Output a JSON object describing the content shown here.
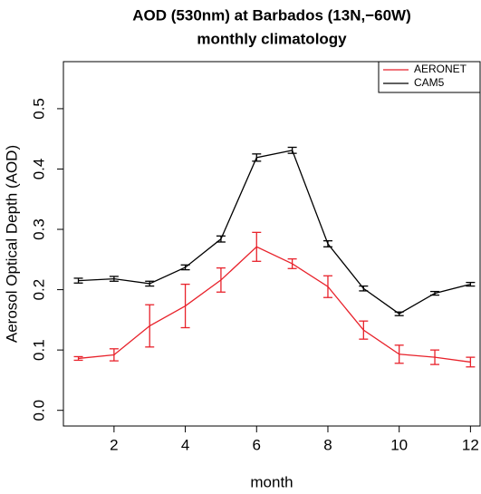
{
  "chart_data": {
    "type": "line",
    "title": "AOD (530nm) at Barbados (13N,−60W)",
    "subtitle": "monthly climatology",
    "x_label": "month",
    "y_label": "Aerosol Optical Depth (AOD)",
    "x": [
      1,
      2,
      3,
      4,
      5,
      6,
      7,
      8,
      9,
      10,
      11,
      12
    ],
    "series": [
      {
        "name": "AERONET",
        "color": "#e8222b",
        "values": [
          0.086,
          0.092,
          0.14,
          0.173,
          0.216,
          0.271,
          0.243,
          0.205,
          0.133,
          0.093,
          0.088,
          0.08
        ],
        "errors": [
          0.003,
          0.01,
          0.035,
          0.036,
          0.02,
          0.024,
          0.008,
          0.018,
          0.015,
          0.015,
          0.012,
          0.008
        ]
      },
      {
        "name": "CAM5",
        "color": "#000000",
        "values": [
          0.215,
          0.218,
          0.21,
          0.237,
          0.284,
          0.419,
          0.431,
          0.276,
          0.202,
          0.16,
          0.194,
          0.209
        ],
        "errors": [
          0.004,
          0.004,
          0.004,
          0.004,
          0.005,
          0.006,
          0.005,
          0.005,
          0.004,
          0.003,
          0.003,
          0.003
        ]
      }
    ],
    "xlim": [
      0.58,
      12.27
    ],
    "ylim": [
      -0.026,
      0.578
    ],
    "xticks": [
      2,
      4,
      6,
      8,
      10,
      12
    ],
    "yticks": [
      {
        "value": 0,
        "label": "0.0"
      },
      0.1,
      0.2,
      0.3,
      0.4,
      0.5
    ],
    "legend": "top-right"
  }
}
